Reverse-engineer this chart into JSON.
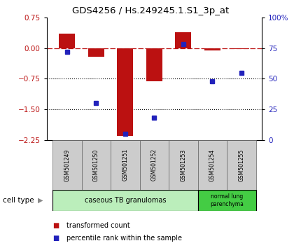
{
  "title": "GDS4256 / Hs.249245.1.S1_3p_at",
  "samples": [
    "GSM501249",
    "GSM501250",
    "GSM501251",
    "GSM501252",
    "GSM501253",
    "GSM501254",
    "GSM501255"
  ],
  "red_values": [
    0.35,
    -0.22,
    -2.15,
    -0.82,
    0.38,
    -0.05,
    -0.03
  ],
  "blue_values": [
    72,
    30,
    5,
    18,
    78,
    48,
    55
  ],
  "red_ylim": [
    -2.25,
    0.75
  ],
  "blue_ylim": [
    0,
    100
  ],
  "red_yticks": [
    0.75,
    0,
    -0.75,
    -1.5,
    -2.25
  ],
  "blue_yticks": [
    100,
    75,
    50,
    25,
    0
  ],
  "blue_yticklabels": [
    "100%",
    "75",
    "50",
    "25",
    "0"
  ],
  "red_color": "#bb1111",
  "blue_color": "#2222bb",
  "cell_types": [
    {
      "label": "caseous TB granulomas",
      "indices": [
        0,
        4
      ],
      "color": "#bbeebb"
    },
    {
      "label": "normal lung\nparenchyma",
      "indices": [
        5,
        6
      ],
      "color": "#44cc44"
    }
  ],
  "legend_red": "transformed count",
  "legend_blue": "percentile rank within the sample",
  "cell_type_label": "cell type",
  "hline_y": 0,
  "dotted_lines": [
    -0.75,
    -1.5
  ],
  "bar_width": 0.55
}
